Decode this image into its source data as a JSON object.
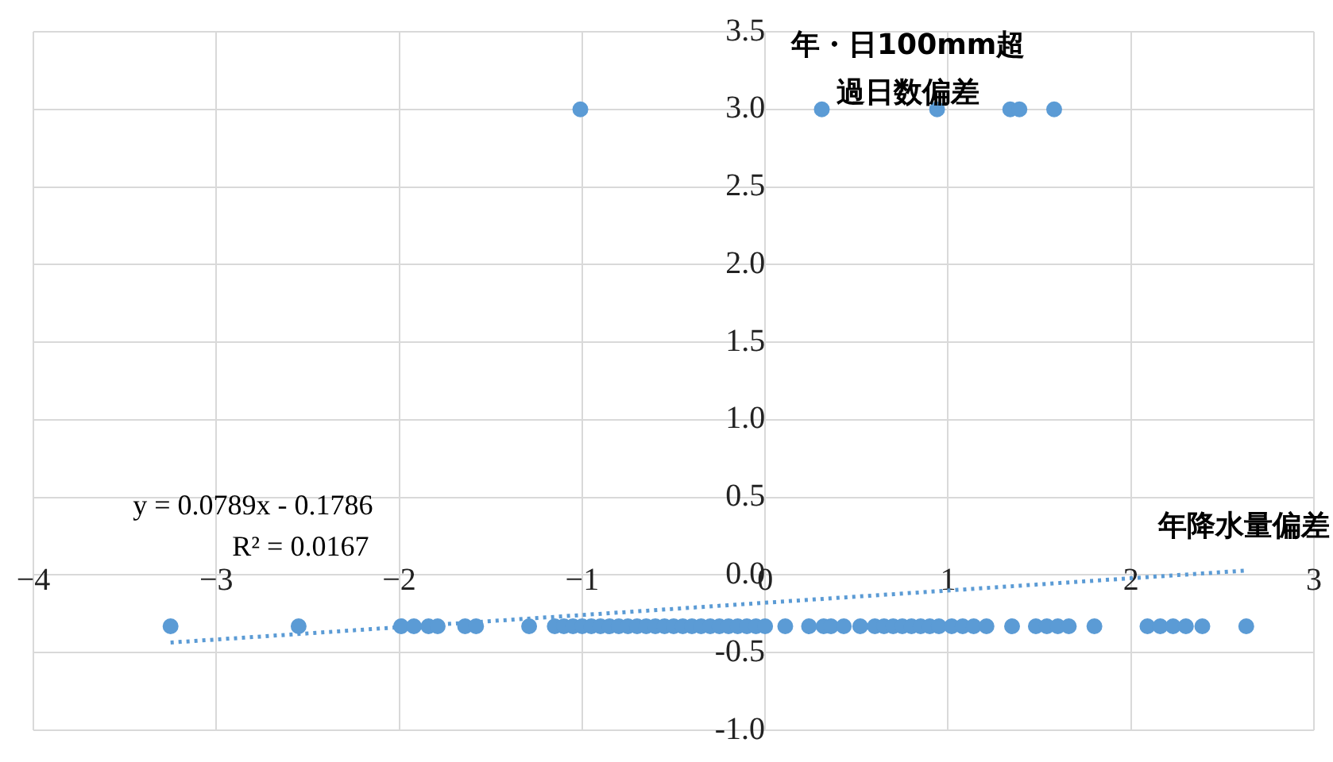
{
  "chart_data": {
    "type": "scatter",
    "xlabel": "年降水量偏差",
    "ylabel": "年・日100mm超過日数偏差",
    "series": [
      {
        "color": "#5b9bd5",
        "x": [
          -3.25,
          -2.55,
          -1.99,
          -1.92,
          -1.84,
          -1.79,
          -1.64,
          -1.58,
          -1.29,
          -1.15,
          -1.1,
          -1.05,
          -1.0,
          -0.95,
          -0.9,
          -0.85,
          -0.8,
          -0.75,
          -0.7,
          -0.65,
          -0.6,
          -0.55,
          -0.5,
          -0.45,
          -0.4,
          -0.35,
          -0.3,
          -0.25,
          -0.2,
          -0.15,
          -0.1,
          -0.05,
          0.0,
          0.11,
          0.24,
          0.32,
          0.36,
          0.43,
          0.52,
          0.6,
          0.65,
          0.7,
          0.75,
          0.8,
          0.85,
          0.9,
          0.95,
          1.02,
          1.08,
          1.14,
          1.21,
          1.35,
          1.48,
          1.54,
          1.6,
          1.66,
          1.8,
          2.09,
          2.16,
          2.23,
          2.3,
          2.39,
          2.63,
          -1.01,
          0.31,
          0.94,
          1.34,
          1.39,
          1.58
        ],
        "values": [
          -0.33,
          -0.33,
          -0.33,
          -0.33,
          -0.33,
          -0.33,
          -0.33,
          -0.33,
          -0.33,
          -0.33,
          -0.33,
          -0.33,
          -0.33,
          -0.33,
          -0.33,
          -0.33,
          -0.33,
          -0.33,
          -0.33,
          -0.33,
          -0.33,
          -0.33,
          -0.33,
          -0.33,
          -0.33,
          -0.33,
          -0.33,
          -0.33,
          -0.33,
          -0.33,
          -0.33,
          -0.33,
          -0.33,
          -0.33,
          -0.33,
          -0.33,
          -0.33,
          -0.33,
          -0.33,
          -0.33,
          -0.33,
          -0.33,
          -0.33,
          -0.33,
          -0.33,
          -0.33,
          -0.33,
          -0.33,
          -0.33,
          -0.33,
          -0.33,
          -0.33,
          -0.33,
          -0.33,
          -0.33,
          -0.33,
          -0.33,
          -0.33,
          -0.33,
          -0.33,
          -0.33,
          -0.33,
          -0.33,
          3.0,
          3.0,
          3.0,
          3.0,
          3.0,
          3.0
        ]
      },
      {
        "type": "line",
        "line_style": "dotted",
        "marker": "none",
        "color": "#5b9bd5",
        "x": [
          -3.25,
          2.63
        ],
        "values": [
          -0.435,
          0.029
        ]
      }
    ],
    "xlim": [
      -4,
      3
    ],
    "xticks": [
      {
        "value": -4,
        "label": "−4"
      },
      {
        "value": -3,
        "label": "−3"
      },
      {
        "value": -2,
        "label": "−2"
      },
      {
        "value": -1,
        "label": "−1"
      },
      0,
      1,
      2,
      3
    ],
    "ylim": [
      -1,
      3.5
    ],
    "yticks": [
      {
        "value": -1,
        "label": "-1.0"
      },
      {
        "value": -0.5,
        "label": "-0.5"
      },
      {
        "value": 0,
        "label": "0.0"
      },
      0.5,
      {
        "value": 1,
        "label": "1.0"
      },
      1.5,
      {
        "value": 2,
        "label": "2.0"
      },
      2.5,
      {
        "value": 3,
        "label": "3.0"
      },
      3.5
    ],
    "grid": true,
    "legend": false,
    "marker": "circle",
    "annotations": [
      "y = 0.0789x - 0.1786",
      "R² = 0.0167"
    ]
  }
}
